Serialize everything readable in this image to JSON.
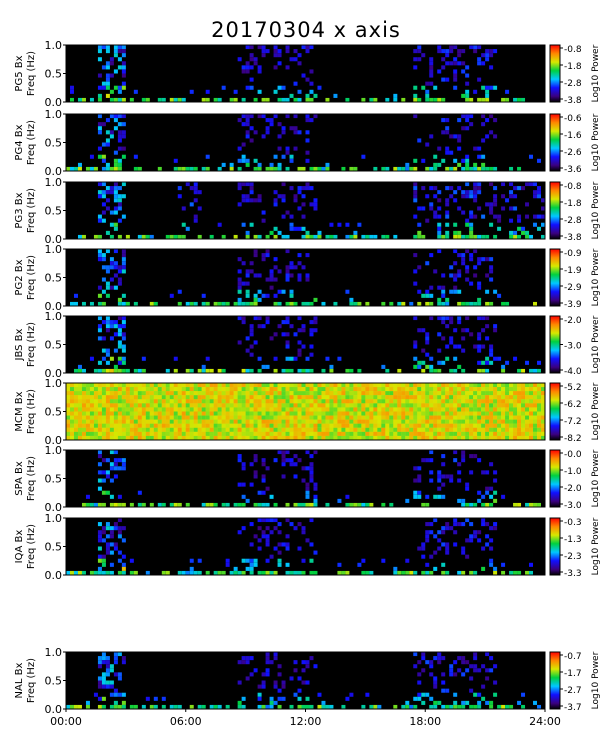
{
  "title": "20170304 x axis",
  "chart_data": {
    "type": "heatmap",
    "title": "20170304 x axis",
    "x_ticks": [
      "00:00",
      "06:00",
      "12:00",
      "18:00",
      "24:00"
    ],
    "xlim": [
      "00:00",
      "24:00"
    ],
    "y_ticks": [
      "0.0",
      "0.5",
      "1.0"
    ],
    "ylim": [
      0.0,
      1.0
    ],
    "panels": [
      {
        "station": "PG5 Bx",
        "ylabel": "Freq (Hz)",
        "cbar_label": "Log10 Power",
        "cbar_ticks": [
          "-0.8",
          "-1.8",
          "-2.8",
          "-3.8"
        ]
      },
      {
        "station": "PG4 Bx",
        "ylabel": "Freq (Hz)",
        "cbar_label": "Log10 Power",
        "cbar_ticks": [
          "-0.6",
          "-1.6",
          "-2.6",
          "-3.6"
        ]
      },
      {
        "station": "PG3 Bx",
        "ylabel": "Freq (Hz)",
        "cbar_label": "Log10 Power",
        "cbar_ticks": [
          "-0.8",
          "-1.8",
          "-2.8",
          "-3.8"
        ]
      },
      {
        "station": "PG2 Bx",
        "ylabel": "Freq (Hz)",
        "cbar_label": "Log10 Power",
        "cbar_ticks": [
          "-0.9",
          "-1.9",
          "-2.9",
          "-3.9"
        ]
      },
      {
        "station": "JBS Bx",
        "ylabel": "Freq (Hz)",
        "cbar_label": "Log10 Power",
        "cbar_ticks": [
          "-2.0",
          "-3.0",
          "-4.0"
        ]
      },
      {
        "station": "MCM Bx",
        "ylabel": "Freq (Hz)",
        "cbar_label": "Log10 Power",
        "cbar_ticks": [
          "-5.2",
          "-6.2",
          "-7.2",
          "-8.2"
        ]
      },
      {
        "station": "SPA Bx",
        "ylabel": "Freq (Hz)",
        "cbar_label": "Log10 Power",
        "cbar_ticks": [
          "-0.0",
          "-1.0",
          "-2.0",
          "-3.0"
        ]
      },
      {
        "station": "IQA Bx",
        "ylabel": "Freq (Hz)",
        "cbar_label": "Log10 Power",
        "cbar_ticks": [
          "-0.3",
          "-1.3",
          "-2.3",
          "-3.3"
        ]
      },
      {
        "station": "NAL Bx",
        "ylabel": "Freq (Hz)",
        "cbar_label": "Log10 Power",
        "cbar_ticks": [
          "-0.7",
          "-1.7",
          "-2.7",
          "-3.7"
        ]
      }
    ]
  }
}
